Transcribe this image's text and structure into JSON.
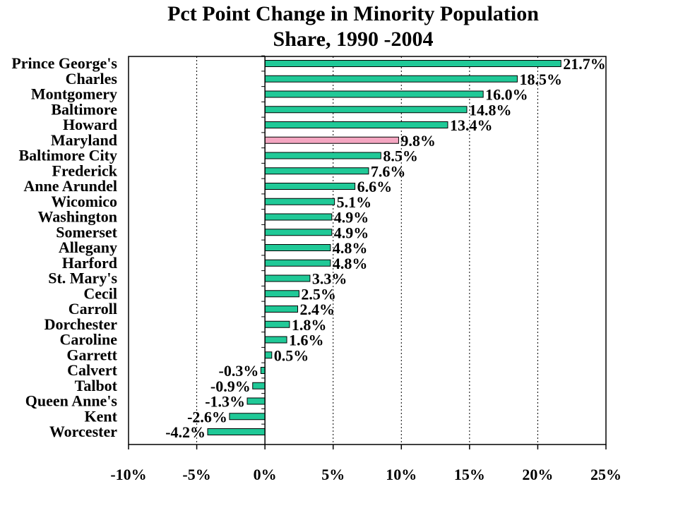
{
  "chart_data": {
    "type": "bar",
    "orientation": "horizontal",
    "title_line1": "Pct Point Change in Minority Population",
    "title_line2": "Share, 1990 -2004",
    "categories": [
      "Prince George's",
      "Charles",
      "Montgomery",
      "Baltimore",
      "Howard",
      "Maryland",
      "Baltimore City",
      "Frederick",
      "Anne Arundel",
      "Wicomico",
      "Washington",
      "Somerset",
      "Allegany",
      "Harford",
      "St. Mary's",
      "Cecil",
      "Carroll",
      "Dorchester",
      "Caroline",
      "Garrett",
      "Calvert",
      "Talbot",
      "Queen Anne's",
      "Kent",
      "Worcester"
    ],
    "values": [
      21.7,
      18.5,
      16.0,
      14.8,
      13.4,
      9.8,
      8.5,
      7.6,
      6.6,
      5.1,
      4.9,
      4.9,
      4.8,
      4.8,
      3.3,
      2.5,
      2.4,
      1.8,
      1.6,
      0.5,
      -0.3,
      -0.9,
      -1.3,
      -2.6,
      -4.2
    ],
    "value_labels": [
      "21.7%",
      "18.5%",
      "16.0%",
      "14.8%",
      "13.4%",
      "9.8%",
      "8.5%",
      "7.6%",
      "6.6%",
      "5.1%",
      "4.9%",
      "4.9%",
      "4.8%",
      "4.8%",
      "3.3%",
      "2.5%",
      "2.4%",
      "1.8%",
      "1.6%",
      "0.5%",
      "-0.3%",
      "-0.9%",
      "-1.3%",
      "-2.6%",
      "-4.2%"
    ],
    "xlim": [
      -10,
      25
    ],
    "xticks": [
      -10,
      -5,
      0,
      5,
      10,
      15,
      20,
      25
    ],
    "xtick_labels": [
      "-10%",
      "-5%",
      "0%",
      "5%",
      "10%",
      "15%",
      "20%",
      "25%"
    ],
    "highlight_category": "Maryland",
    "colors": {
      "bar": "#20c997",
      "highlight": "#f4a6c1",
      "bar_stroke": "#000000"
    },
    "grid": "vertical dotted"
  }
}
